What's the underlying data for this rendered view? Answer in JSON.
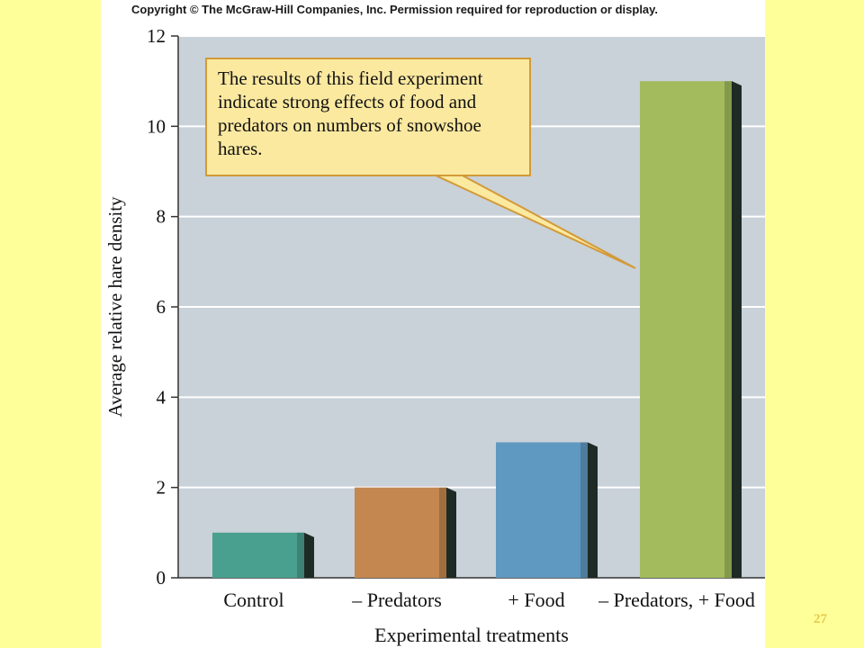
{
  "copyright": "Copyright © The McGraw-Hill Companies, Inc. Permission required for reproduction or display.",
  "page_number": "27",
  "callout": {
    "text": "The results of this field experiment indicate strong effects of food and predators on numbers of snowshoe hares."
  },
  "colors": {
    "background": "#ffff99",
    "plot_area": "#c9d1d9",
    "control": "#4aa08f",
    "predators": "#c4874f",
    "food": "#5f98c0",
    "predators_food": "#a3bb5d"
  },
  "chart_data": {
    "type": "bar",
    "categories": [
      "Control",
      "– Predators",
      "+ Food",
      "– Predators, + Food"
    ],
    "values": [
      1,
      2,
      3,
      11
    ],
    "xlabel": "Experimental treatments",
    "ylabel": "Average relative hare density",
    "ylim": [
      0,
      12
    ],
    "yticks": [
      0,
      2,
      4,
      6,
      8,
      10,
      12
    ],
    "grid": true,
    "legend": "none"
  }
}
